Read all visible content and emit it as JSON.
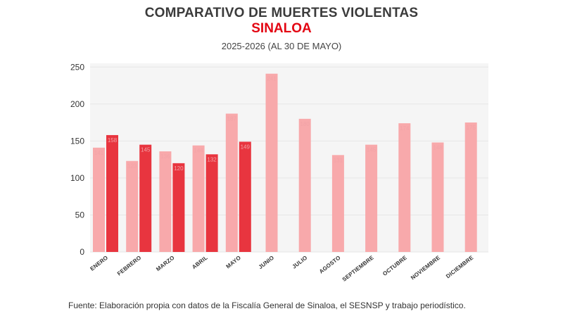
{
  "header": {
    "title": "COMPARATIVO DE MUERTES VIOLENTAS",
    "subtitle": "SINALOA",
    "period": "2025-2026 (AL 30 DE MAYO)"
  },
  "footer": {
    "source": "Fuente: Elaboración propia con datos de la Fiscalía General de Sinaloa, el SESNSP y trabajo periodístico."
  },
  "colors": {
    "series_2025": "#f8a9ab",
    "series_2026": "#e8353f",
    "plot_background": "#f5f5f5",
    "gridline": "#e6e6e6"
  },
  "chart_data": {
    "type": "bar",
    "categories": [
      "ENERO",
      "FEBRERO",
      "MARZO",
      "ABRIL",
      "MAYO",
      "JUNIO",
      "JULIO",
      "AGOSTO",
      "SEPTIEMBRE",
      "OCTUBRE",
      "NOVIEMBRE",
      "DICIEMBRE"
    ],
    "series": [
      {
        "values": [
          141,
          123,
          136,
          144,
          187,
          241,
          180,
          131,
          145,
          174,
          148,
          175
        ],
        "labels": [
          "141",
          "123",
          "136",
          "144",
          "187",
          "241",
          "180",
          "131",
          "145",
          "174",
          "148",
          "175"
        ]
      },
      {
        "values": [
          158,
          145,
          120,
          132,
          149,
          null,
          null,
          null,
          null,
          null,
          null,
          null
        ],
        "labels": [
          "158",
          "145",
          "120",
          "132",
          "149",
          "",
          "",
          "",
          "",
          "",
          "",
          ""
        ]
      }
    ],
    "y_ticks": [
      "0",
      "50",
      "100",
      "150",
      "200",
      "250"
    ],
    "ylim": [
      0,
      255
    ],
    "grid": true,
    "legend": "none"
  }
}
